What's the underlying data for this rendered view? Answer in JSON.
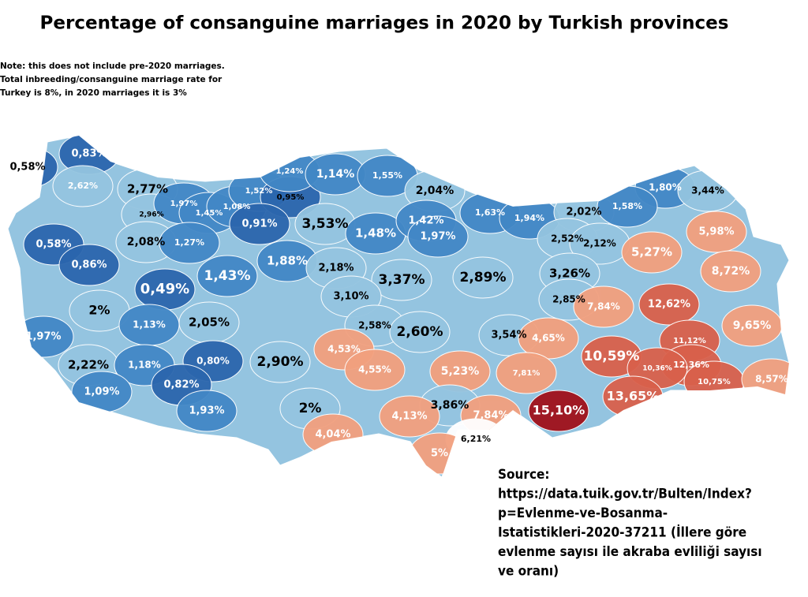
{
  "title": "Percentage of consanguine marriages in 2020 by Turkish provinces",
  "note": [
    "Note: this does not include pre-2020 marriages.",
    "Total inbreeding/consanguine marriage rate for",
    "Turkey is 8%, in 2020 marriages it is 3%"
  ],
  "source": [
    "Source:",
    "https://data.tuik.gov.tr/Bulten/Index?",
    "p=Evlenme-ve-Bosanma-",
    "Istatistikleri-2020-37211 (İllere göre",
    "evlenme sayısı ile akraba evliliği sayısı",
    "ve oranı)"
  ],
  "labels": [
    {
      "text": "0,83%",
      "fill": "#2b66ad",
      "ink": "#fff"
    },
    {
      "text": "0,58%",
      "fill": "#2b66ad",
      "ink": "#000"
    },
    {
      "text": "2,62%",
      "fill": "#94c4e0",
      "ink": "#fff"
    },
    {
      "text": "2,77%",
      "fill": "#94c4e0",
      "ink": "#000"
    },
    {
      "text": "2,96%",
      "fill": "#94c4e0",
      "ink": "#000"
    },
    {
      "text": "1,97%",
      "fill": "#4287c6",
      "ink": "#fff"
    },
    {
      "text": "1,45%",
      "fill": "#4287c6",
      "ink": "#fff"
    },
    {
      "text": "1,08%",
      "fill": "#4287c6",
      "ink": "#fff"
    },
    {
      "text": "1,52%",
      "fill": "#4287c6",
      "ink": "#fff"
    },
    {
      "text": "0,95%",
      "fill": "#2b66ad",
      "ink": "#000"
    },
    {
      "text": "1,24%",
      "fill": "#4287c6",
      "ink": "#fff"
    },
    {
      "text": "1,14%",
      "fill": "#4287c6",
      "ink": "#fff"
    },
    {
      "text": "1,55%",
      "fill": "#4287c6",
      "ink": "#fff"
    },
    {
      "text": "2,04%",
      "fill": "#94c4e0",
      "ink": "#000"
    },
    {
      "text": "0,91%",
      "fill": "#2b66ad",
      "ink": "#fff"
    },
    {
      "text": "3,53%",
      "fill": "#94c4e0",
      "ink": "#000"
    },
    {
      "text": "1,48%",
      "fill": "#4287c6",
      "ink": "#fff"
    },
    {
      "text": "1,42%",
      "fill": "#4287c6",
      "ink": "#fff"
    },
    {
      "text": "1,63%",
      "fill": "#4287c6",
      "ink": "#fff"
    },
    {
      "text": "1,94%",
      "fill": "#4287c6",
      "ink": "#fff"
    },
    {
      "text": "1,97%",
      "fill": "#4287c6",
      "ink": "#fff"
    },
    {
      "text": "2,02%",
      "fill": "#94c4e0",
      "ink": "#000"
    },
    {
      "text": "1,80%",
      "fill": "#4287c6",
      "ink": "#fff"
    },
    {
      "text": "3,44%",
      "fill": "#94c4e0",
      "ink": "#000"
    },
    {
      "text": "1,58%",
      "fill": "#4287c6",
      "ink": "#fff"
    },
    {
      "text": "2,52%",
      "fill": "#94c4e0",
      "ink": "#000"
    },
    {
      "text": "2,12%",
      "fill": "#94c4e0",
      "ink": "#000"
    },
    {
      "text": "5,98%",
      "fill": "#f2a07e",
      "ink": "#fff"
    },
    {
      "text": "5,27%",
      "fill": "#f2a07e",
      "ink": "#fff"
    },
    {
      "text": "8,72%",
      "fill": "#f2a07e",
      "ink": "#fff"
    },
    {
      "text": "0,58%",
      "fill": "#2b66ad",
      "ink": "#fff"
    },
    {
      "text": "2,08%",
      "fill": "#94c4e0",
      "ink": "#000"
    },
    {
      "text": "1,27%",
      "fill": "#4287c6",
      "ink": "#fff"
    },
    {
      "text": "0,86%",
      "fill": "#2b66ad",
      "ink": "#fff"
    },
    {
      "text": "1,43%",
      "fill": "#4287c6",
      "ink": "#fff"
    },
    {
      "text": "1,88%",
      "fill": "#4287c6",
      "ink": "#fff"
    },
    {
      "text": "2,18%",
      "fill": "#94c4e0",
      "ink": "#000"
    },
    {
      "text": "3,37%",
      "fill": "#94c4e0",
      "ink": "#000"
    },
    {
      "text": "2,89%",
      "fill": "#94c4e0",
      "ink": "#000"
    },
    {
      "text": "3,26%",
      "fill": "#94c4e0",
      "ink": "#000"
    },
    {
      "text": "0,49%",
      "fill": "#2b66ad",
      "ink": "#fff"
    },
    {
      "text": "3,10%",
      "fill": "#94c4e0",
      "ink": "#000"
    },
    {
      "text": "2,85%",
      "fill": "#94c4e0",
      "ink": "#000"
    },
    {
      "text": "7,84%",
      "fill": "#f2a07e",
      "ink": "#fff"
    },
    {
      "text": "12,62%",
      "fill": "#d9604b",
      "ink": "#fff"
    },
    {
      "text": "9,65%",
      "fill": "#f2a07e",
      "ink": "#fff"
    },
    {
      "text": "2%",
      "fill": "#94c4e0",
      "ink": "#000"
    },
    {
      "text": "1,13%",
      "fill": "#4287c6",
      "ink": "#fff"
    },
    {
      "text": "2,05%",
      "fill": "#94c4e0",
      "ink": "#000"
    },
    {
      "text": "2,58%",
      "fill": "#94c4e0",
      "ink": "#000"
    },
    {
      "text": "2,60%",
      "fill": "#94c4e0",
      "ink": "#000"
    },
    {
      "text": "3,54%",
      "fill": "#94c4e0",
      "ink": "#000"
    },
    {
      "text": "4,65%",
      "fill": "#f2a07e",
      "ink": "#fff"
    },
    {
      "text": "4,53%",
      "fill": "#f2a07e",
      "ink": "#fff"
    },
    {
      "text": "11,12%",
      "fill": "#d9604b",
      "ink": "#fff"
    },
    {
      "text": "1,97%",
      "fill": "#4287c6",
      "ink": "#fff"
    },
    {
      "text": "10,59%",
      "fill": "#d9604b",
      "ink": "#fff"
    },
    {
      "text": "12,36%",
      "fill": "#d9604b",
      "ink": "#fff"
    },
    {
      "text": "10,36%",
      "fill": "#d9604b",
      "ink": "#fff"
    },
    {
      "text": "2,22%",
      "fill": "#94c4e0",
      "ink": "#000"
    },
    {
      "text": "1,18%",
      "fill": "#4287c6",
      "ink": "#fff"
    },
    {
      "text": "0,80%",
      "fill": "#2b66ad",
      "ink": "#fff"
    },
    {
      "text": "2,90%",
      "fill": "#94c4e0",
      "ink": "#000"
    },
    {
      "text": "4,55%",
      "fill": "#f2a07e",
      "ink": "#fff"
    },
    {
      "text": "5,23%",
      "fill": "#f2a07e",
      "ink": "#fff"
    },
    {
      "text": "7,81%",
      "fill": "#f2a07e",
      "ink": "#fff"
    },
    {
      "text": "10,75%",
      "fill": "#d9604b",
      "ink": "#fff"
    },
    {
      "text": "8,57%",
      "fill": "#f2a07e",
      "ink": "#fff"
    },
    {
      "text": "1,09%",
      "fill": "#4287c6",
      "ink": "#fff"
    },
    {
      "text": "0,82%",
      "fill": "#2b66ad",
      "ink": "#fff"
    },
    {
      "text": "13,65%",
      "fill": "#d9604b",
      "ink": "#fff"
    },
    {
      "text": "2%",
      "fill": "#94c4e0",
      "ink": "#000"
    },
    {
      "text": "3,86%",
      "fill": "#94c4e0",
      "ink": "#000"
    },
    {
      "text": "15,10%",
      "fill": "#a0101a",
      "ink": "#fff"
    },
    {
      "text": "4,13%",
      "fill": "#f2a07e",
      "ink": "#fff"
    },
    {
      "text": "1,93%",
      "fill": "#4287c6",
      "ink": "#fff"
    },
    {
      "text": "7,84%",
      "fill": "#f2a07e",
      "ink": "#fff"
    },
    {
      "text": "4,04%",
      "fill": "#f2a07e",
      "ink": "#fff"
    },
    {
      "text": "6,21%",
      "fill": "#ffffff",
      "ink": "#000"
    },
    {
      "text": "5%",
      "fill": "#f2a07e",
      "ink": "#fff"
    }
  ]
}
